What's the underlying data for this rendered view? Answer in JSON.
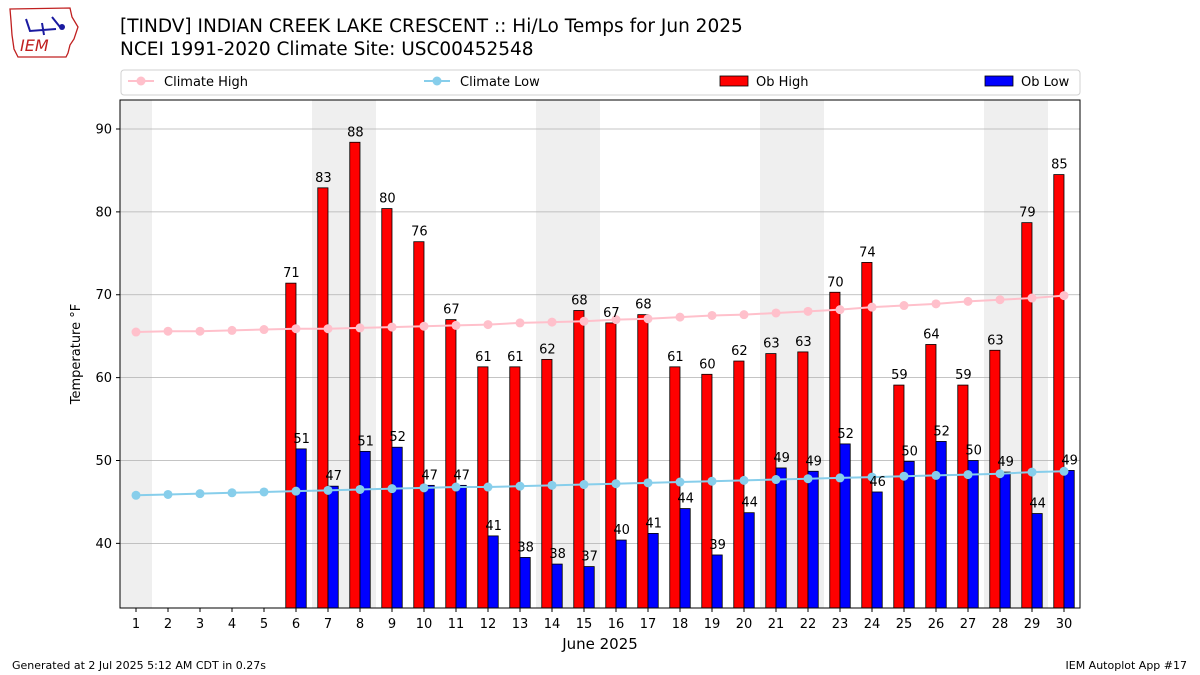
{
  "header": {
    "title_line1": "[TINDV] INDIAN CREEK LAKE CRESCENT  :: Hi/Lo Temps for Jun 2025",
    "title_line2": "NCEI 1991-2020 Climate Site: USC00452548",
    "logo_text": "IEM"
  },
  "footer": {
    "generated": "Generated at 2 Jul 2025 5:12 AM CDT in 0.27s",
    "app": "IEM Autoplot App #17"
  },
  "colors": {
    "ob_high": "#ff0000",
    "ob_low": "#0000ff",
    "climate_high": "#ffc0cb",
    "climate_low": "#87ceeb",
    "weekend_band": "#efefef"
  },
  "chart_data": {
    "type": "bar",
    "xlabel": "June 2025",
    "ylabel": "Temperature °F",
    "ylim": [
      32.2,
      93.5
    ],
    "yticks": [
      40,
      50,
      60,
      70,
      80,
      90
    ],
    "days": [
      1,
      2,
      3,
      4,
      5,
      6,
      7,
      8,
      9,
      10,
      11,
      12,
      13,
      14,
      15,
      16,
      17,
      18,
      19,
      20,
      21,
      22,
      23,
      24,
      25,
      26,
      27,
      28,
      29,
      30
    ],
    "shaded_days": [
      1,
      7,
      8,
      14,
      15,
      21,
      22,
      28,
      29
    ],
    "grid": true,
    "legend_position": "top",
    "legend": [
      "Climate High",
      "Climate Low",
      "Ob High",
      "Ob Low"
    ],
    "series": [
      {
        "name": "Ob High",
        "kind": "bar",
        "values": [
          null,
          null,
          null,
          null,
          null,
          71.4,
          82.9,
          88.4,
          80.4,
          76.4,
          67.0,
          61.3,
          61.3,
          62.2,
          68.1,
          66.6,
          67.6,
          61.3,
          60.4,
          62.0,
          62.9,
          63.1,
          70.3,
          73.9,
          59.1,
          64.0,
          59.1,
          63.3,
          78.7,
          84.5
        ],
        "labels": [
          "",
          "",
          "",
          "",
          "",
          "71",
          "83",
          "88",
          "80",
          "76",
          "67",
          "61",
          "61",
          "62",
          "68",
          "67",
          "68",
          "61",
          "60",
          "62",
          "63",
          "63",
          "70",
          "74",
          "59",
          "64",
          "59",
          "63",
          "79",
          "85"
        ]
      },
      {
        "name": "Ob Low",
        "kind": "bar",
        "values": [
          null,
          null,
          null,
          null,
          null,
          51.4,
          46.9,
          51.1,
          51.6,
          47.0,
          47.0,
          40.9,
          38.3,
          37.5,
          37.2,
          40.4,
          41.2,
          44.2,
          38.6,
          43.7,
          49.1,
          48.7,
          52.0,
          46.2,
          49.9,
          52.3,
          50.0,
          48.6,
          43.6,
          48.8
        ],
        "labels": [
          "",
          "",
          "",
          "",
          "",
          "51",
          "47",
          "51",
          "52",
          "47",
          "47",
          "41",
          "38",
          "38",
          "37",
          "40",
          "41",
          "44",
          "39",
          "44",
          "49",
          "49",
          "52",
          "46",
          "50",
          "52",
          "50",
          "49",
          "44",
          "49"
        ]
      },
      {
        "name": "Climate High",
        "kind": "line",
        "values": [
          65.5,
          65.6,
          65.6,
          65.7,
          65.8,
          65.9,
          65.9,
          66.0,
          66.1,
          66.2,
          66.3,
          66.4,
          66.6,
          66.7,
          66.8,
          67.0,
          67.1,
          67.3,
          67.5,
          67.6,
          67.8,
          68.0,
          68.2,
          68.5,
          68.7,
          68.9,
          69.2,
          69.4,
          69.6,
          69.9
        ]
      },
      {
        "name": "Climate Low",
        "kind": "line",
        "values": [
          45.8,
          45.9,
          46.0,
          46.1,
          46.2,
          46.3,
          46.4,
          46.5,
          46.6,
          46.7,
          46.8,
          46.8,
          46.9,
          47.0,
          47.1,
          47.2,
          47.3,
          47.4,
          47.5,
          47.6,
          47.7,
          47.8,
          47.9,
          48.0,
          48.1,
          48.2,
          48.3,
          48.4,
          48.6,
          48.7
        ]
      }
    ]
  }
}
